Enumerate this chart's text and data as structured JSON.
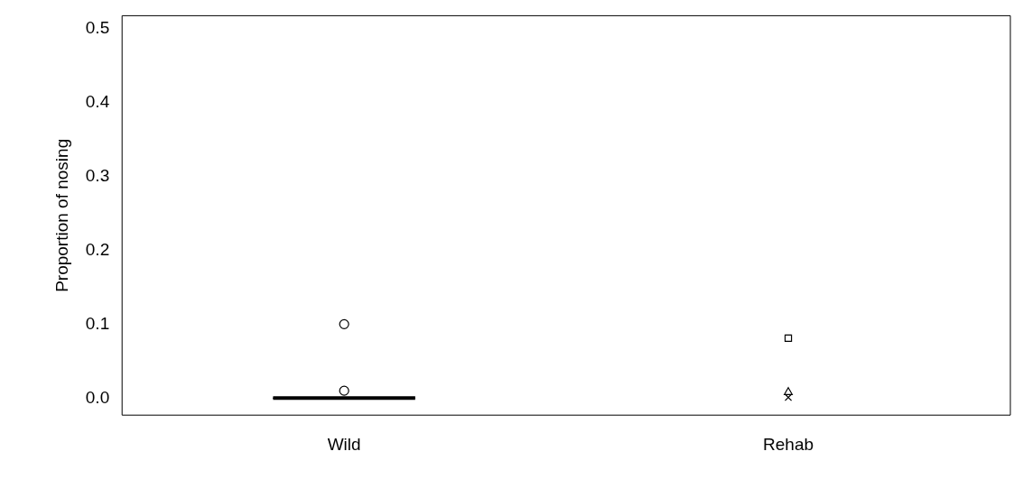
{
  "chart_data": {
    "type": "box",
    "ylabel": "Proportion of nosing",
    "categories": [
      "Wild",
      "Rehab"
    ],
    "boxes": [
      {
        "low": 0,
        "q1": 0,
        "median": 0,
        "q3": 0,
        "high": 0,
        "outliers": [
          0.1,
          0.01
        ]
      },
      null
    ],
    "series": [
      {
        "type": "scatter",
        "marker": "square",
        "color": "#000000",
        "x": [
          "Rehab"
        ],
        "values": [
          0.081
        ]
      },
      {
        "type": "scatter",
        "marker": "triangle",
        "color": "#000000",
        "x": [
          "Rehab"
        ],
        "values": [
          0.008
        ]
      },
      {
        "type": "scatter",
        "marker": "cross",
        "color": "#000000",
        "x": [
          "Rehab"
        ],
        "values": [
          0.001
        ]
      }
    ],
    "ylim": [
      -0.023,
      0.517
    ],
    "yticks": [
      {
        "value": 0,
        "label": "0.0"
      },
      0.1,
      0.2,
      0.3,
      0.4,
      0.5
    ],
    "grid": false,
    "legend": false
  }
}
